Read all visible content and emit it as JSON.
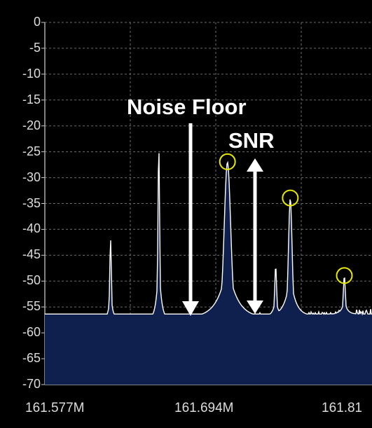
{
  "y_axis_labels": [
    "0",
    "-5",
    "-10",
    "-15",
    "-20",
    "-25",
    "-30",
    "-35",
    "-40",
    "-45",
    "-50",
    "-55",
    "-60",
    "-65",
    "-70"
  ],
  "x_axis_labels": [
    "161.577M",
    "161.694M",
    "161.81"
  ],
  "annotations": {
    "noise_floor": "Noise Floor",
    "snr": "SNR"
  },
  "colors": {
    "background": "#000000",
    "grid": "#6b6b6b",
    "fill": "#10204e",
    "trace": "#ffffff",
    "marker": "#e8e800"
  },
  "chart_data": {
    "type": "area",
    "ylim": [
      -70,
      0
    ],
    "x_ticks": [
      "161.577M",
      "161.694M",
      "161.81"
    ],
    "noise_floor_db": -58,
    "peaks": [
      {
        "x_mhz": 161.622,
        "db": -42
      },
      {
        "x_mhz": 161.655,
        "db": -24
      },
      {
        "x_mhz": 161.702,
        "db": -27
      },
      {
        "x_mhz": 161.735,
        "db": -47
      },
      {
        "x_mhz": 161.745,
        "db": -34
      },
      {
        "x_mhz": 161.782,
        "db": -49
      }
    ],
    "markers": [
      {
        "x_mhz": 161.702,
        "db": -27
      },
      {
        "x_mhz": 161.745,
        "db": -34
      },
      {
        "x_mhz": 161.782,
        "db": -49
      }
    ]
  }
}
